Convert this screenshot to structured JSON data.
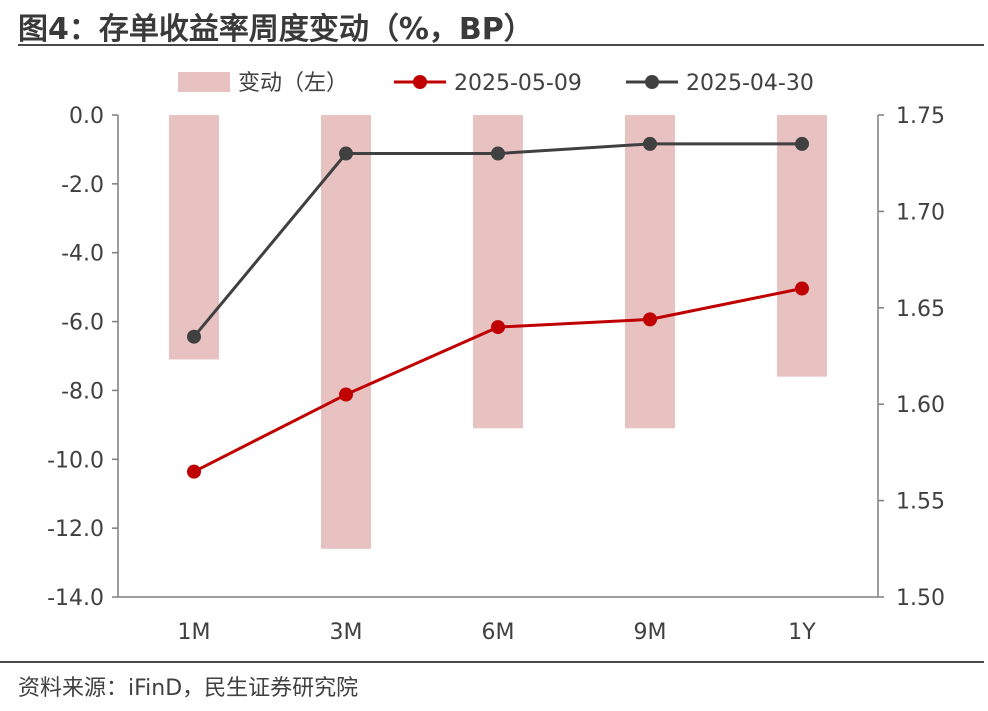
{
  "title": "图4：存单收益率周度变动（%，BP）",
  "source": "资料来源：iFinD，民生证券研究院",
  "colors": {
    "bar": "#e8c1c1",
    "series_latest": "#c00000",
    "series_prev": "#404040",
    "axis": "#7f7f7f"
  },
  "chart_data": {
    "type": "bar",
    "categories": [
      "1M",
      "3M",
      "6M",
      "9M",
      "1Y"
    ],
    "left_axis": {
      "ylim": [
        -14.0,
        0.0
      ],
      "ticks": [
        "0.0",
        "-2.0",
        "-4.0",
        "-6.0",
        "-8.0",
        "-10.0",
        "-12.0",
        "-14.0"
      ]
    },
    "right_axis": {
      "ylim": [
        1.5,
        1.75
      ],
      "ticks": [
        "1.75",
        "1.70",
        "1.65",
        "1.60",
        "1.55",
        "1.50"
      ]
    },
    "legend_placement": "top",
    "bars": {
      "name": "变动（左）",
      "axis": "left",
      "values": [
        -7.1,
        -12.6,
        -9.1,
        -9.1,
        -7.6
      ]
    },
    "series": [
      {
        "name": "2025-05-09",
        "axis": "right",
        "type": "line",
        "values": [
          1.565,
          1.605,
          1.64,
          1.644,
          1.66
        ]
      },
      {
        "name": "2025-04-30",
        "axis": "right",
        "type": "line",
        "values": [
          1.635,
          1.73,
          1.73,
          1.735,
          1.735
        ]
      }
    ]
  }
}
